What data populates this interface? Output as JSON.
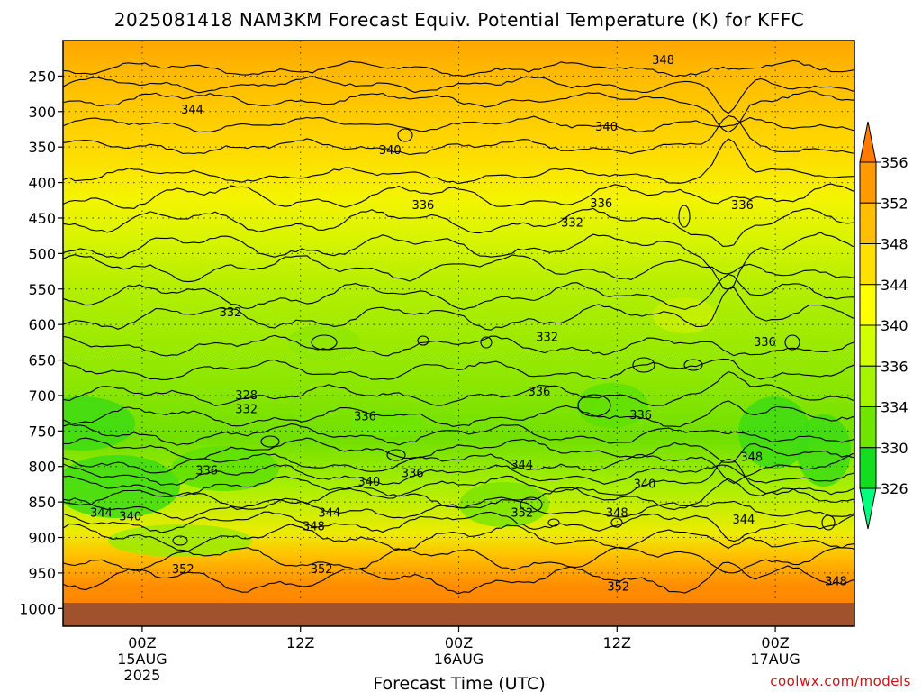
{
  "chart_data": {
    "type": "heatmap",
    "title": "2025081418 NAM3KM Forecast Equiv. Potential Temperature (K) for KFFC",
    "xlabel": "Forecast Time (UTC)",
    "ylabel": "",
    "x_ticks": [
      {
        "label": "00Z",
        "sub1": "15AUG",
        "sub2": "2025",
        "hour": 6
      },
      {
        "label": "12Z",
        "sub1": "",
        "sub2": "",
        "hour": 18
      },
      {
        "label": "00Z",
        "sub1": "16AUG",
        "sub2": "",
        "hour": 30
      },
      {
        "label": "12Z",
        "sub1": "",
        "sub2": "",
        "hour": 42
      },
      {
        "label": "00Z",
        "sub1": "17AUG",
        "sub2": "",
        "hour": 54
      }
    ],
    "xlim_hours": [
      0,
      60
    ],
    "y_ticks": [
      250,
      300,
      350,
      400,
      450,
      500,
      550,
      600,
      650,
      700,
      750,
      800,
      850,
      900,
      950,
      1000
    ],
    "ylim_hpa": [
      200,
      1025
    ],
    "colorbar": {
      "labels": [
        356,
        352,
        348,
        344,
        340,
        336,
        334,
        330,
        326
      ],
      "colors": [
        "#ff7a00",
        "#ff9b00",
        "#ffbe00",
        "#ffe000",
        "#ffff00",
        "#d2ff00",
        "#a5f500",
        "#6ee600",
        "#14dc1e",
        "#00ff7f"
      ]
    },
    "contour_labels": [
      {
        "text": "348",
        "hour": 45.5,
        "p": 228
      },
      {
        "text": "344",
        "hour": 9.8,
        "p": 298
      },
      {
        "text": "340",
        "hour": 41.2,
        "p": 322
      },
      {
        "text": "340",
        "hour": 24.8,
        "p": 355
      },
      {
        "text": "336",
        "hour": 27.3,
        "p": 432
      },
      {
        "text": "336",
        "hour": 40.8,
        "p": 430
      },
      {
        "text": "336",
        "hour": 51.5,
        "p": 432
      },
      {
        "text": "332",
        "hour": 38.6,
        "p": 457
      },
      {
        "text": "332",
        "hour": 12.7,
        "p": 583
      },
      {
        "text": "332",
        "hour": 36.7,
        "p": 618
      },
      {
        "text": "336",
        "hour": 53.2,
        "p": 625
      },
      {
        "text": "336",
        "hour": 36.1,
        "p": 695
      },
      {
        "text": "328",
        "hour": 13.9,
        "p": 700
      },
      {
        "text": "332",
        "hour": 13.9,
        "p": 720
      },
      {
        "text": "336",
        "hour": 22.9,
        "p": 730
      },
      {
        "text": "336",
        "hour": 43.8,
        "p": 728
      },
      {
        "text": "348",
        "hour": 52.2,
        "p": 787
      },
      {
        "text": "344",
        "hour": 34.8,
        "p": 798
      },
      {
        "text": "336",
        "hour": 10.9,
        "p": 806
      },
      {
        "text": "336",
        "hour": 26.5,
        "p": 810
      },
      {
        "text": "340",
        "hour": 23.2,
        "p": 822
      },
      {
        "text": "340",
        "hour": 44.1,
        "p": 825
      },
      {
        "text": "344",
        "hour": 2.9,
        "p": 866
      },
      {
        "text": "340",
        "hour": 5.1,
        "p": 871
      },
      {
        "text": "344",
        "hour": 20.2,
        "p": 866
      },
      {
        "text": "352",
        "hour": 34.8,
        "p": 866
      },
      {
        "text": "348",
        "hour": 42.0,
        "p": 866
      },
      {
        "text": "344",
        "hour": 51.6,
        "p": 875
      },
      {
        "text": "348",
        "hour": 19.0,
        "p": 885
      },
      {
        "text": "352",
        "hour": 9.1,
        "p": 945
      },
      {
        "text": "352",
        "hour": 19.6,
        "p": 945
      },
      {
        "text": "352",
        "hour": 42.1,
        "p": 970
      },
      {
        "text": "348",
        "hour": 58.6,
        "p": 962
      }
    ]
  },
  "credit": "coolwx.com/models"
}
